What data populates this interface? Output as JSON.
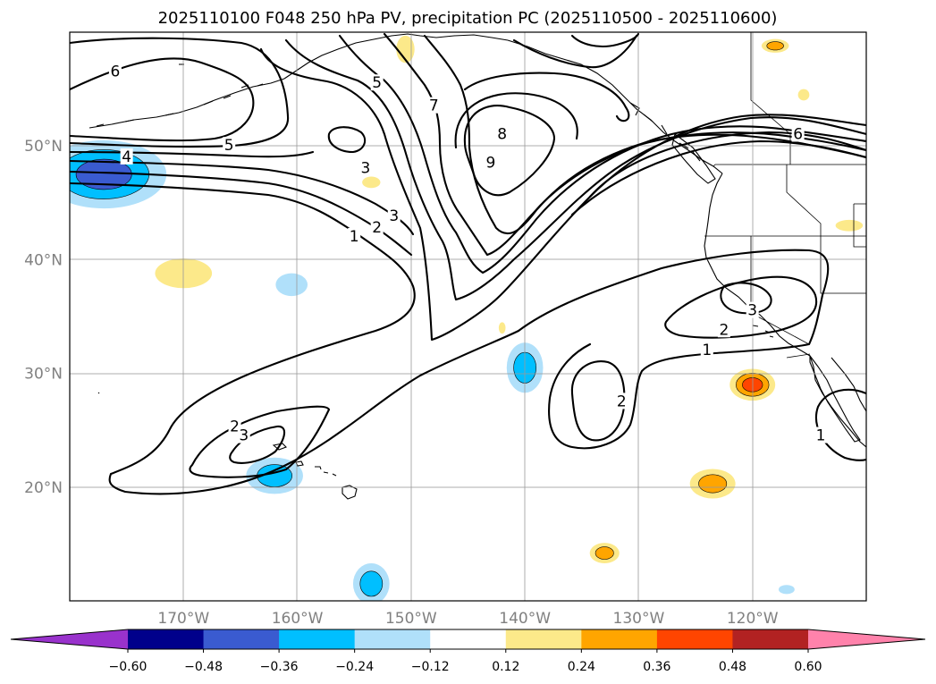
{
  "chart_data": {
    "type": "contour-map",
    "title": "2025110100 F048 250 hPa PV, precipitation PC (2025110500 - 2025110600)",
    "region": {
      "lon_range": [
        -180,
        -110
      ],
      "lat_range": [
        10,
        60
      ]
    },
    "gridlines": true,
    "x_ticks": [
      {
        "lon": -170,
        "label": "170°W"
      },
      {
        "lon": -160,
        "label": "160°W"
      },
      {
        "lon": -150,
        "label": "150°W"
      },
      {
        "lon": -140,
        "label": "140°W"
      },
      {
        "lon": -130,
        "label": "130°W"
      },
      {
        "lon": -120,
        "label": "120°W"
      }
    ],
    "y_ticks": [
      {
        "lat": 50,
        "label": "50°N"
      },
      {
        "lat": 40,
        "label": "40°N"
      },
      {
        "lat": 30,
        "label": "30°N"
      },
      {
        "lat": 20,
        "label": "20°N"
      }
    ],
    "pv_contour_levels": [
      1,
      2,
      3,
      4,
      5,
      6,
      7,
      8,
      9
    ],
    "contour_labels": [
      {
        "text": "6",
        "lon": -176,
        "lat": 56.5
      },
      {
        "text": "5",
        "lon": -166,
        "lat": 50.0
      },
      {
        "text": "4",
        "lon": -175,
        "lat": 49.0
      },
      {
        "text": "5",
        "lon": -153,
        "lat": 55.5
      },
      {
        "text": "7",
        "lon": -148,
        "lat": 53.5
      },
      {
        "text": "8",
        "lon": -142,
        "lat": 51.0
      },
      {
        "text": "9",
        "lon": -143,
        "lat": 48.5
      },
      {
        "text": "3",
        "lon": -154,
        "lat": 48.0
      },
      {
        "text": "3",
        "lon": -151.5,
        "lat": 43.8
      },
      {
        "text": "2",
        "lon": -153,
        "lat": 42.8
      },
      {
        "text": "1",
        "lon": -155,
        "lat": 42.0
      },
      {
        "text": "6",
        "lon": -116,
        "lat": 51.0
      },
      {
        "text": "3",
        "lon": -120,
        "lat": 35.5
      },
      {
        "text": "2",
        "lon": -122.5,
        "lat": 33.8
      },
      {
        "text": "1",
        "lon": -124,
        "lat": 32.0
      },
      {
        "text": "2",
        "lon": -131.5,
        "lat": 27.5
      },
      {
        "text": "2",
        "lon": -165.5,
        "lat": 25.3
      },
      {
        "text": "3",
        "lon": -164.7,
        "lat": 24.5
      },
      {
        "text": "1",
        "lon": -114,
        "lat": 24.5
      }
    ],
    "colorbar": {
      "orientation": "horizontal",
      "extend": "both",
      "boundaries": [
        -0.6,
        -0.48,
        -0.36,
        -0.24,
        -0.12,
        0.12,
        0.24,
        0.36,
        0.48,
        0.6
      ],
      "tick_labels": [
        "−0.60",
        "−0.48",
        "−0.36",
        "−0.24",
        "−0.12",
        "0.12",
        "0.24",
        "0.36",
        "0.48",
        "0.60"
      ],
      "colors": [
        "#9932cc",
        "#00008b",
        "#3a5bd0",
        "#00bfff",
        "#b0e0fa",
        "#ffffff",
        "#fce98a",
        "#ffa500",
        "#ff4500",
        "#b22222",
        "#ff82ab"
      ]
    },
    "precip_anomaly_blobs": [
      {
        "lon": -177,
        "lat": 47.5,
        "rx": 5.5,
        "ry": 3.0,
        "value": -0.4
      },
      {
        "lon": -162,
        "lat": 21.0,
        "rx": 2.5,
        "ry": 1.6,
        "value": -0.28
      },
      {
        "lon": -140,
        "lat": 30.5,
        "rx": 1.6,
        "ry": 2.2,
        "value": -0.3
      },
      {
        "lon": -153.5,
        "lat": 11.5,
        "rx": 1.6,
        "ry": 1.8,
        "value": -0.26
      },
      {
        "lon": -160.5,
        "lat": 37.8,
        "rx": 1.4,
        "ry": 1.0,
        "value": -0.24
      },
      {
        "lon": -170,
        "lat": 38.8,
        "rx": 2.5,
        "ry": 1.3,
        "value": 0.2
      },
      {
        "lon": -120,
        "lat": 29.0,
        "rx": 2.0,
        "ry": 1.4,
        "value": 0.42
      },
      {
        "lon": -123.5,
        "lat": 20.3,
        "rx": 2.0,
        "ry": 1.3,
        "value": 0.28
      },
      {
        "lon": -133,
        "lat": 14.2,
        "rx": 1.3,
        "ry": 0.9,
        "value": 0.26
      },
      {
        "lon": -118,
        "lat": 58.8,
        "rx": 1.2,
        "ry": 0.6,
        "value": 0.26
      },
      {
        "lon": -150.5,
        "lat": 58.5,
        "rx": 0.8,
        "ry": 1.2,
        "value": 0.2
      },
      {
        "lon": -153.5,
        "lat": 46.8,
        "rx": 0.8,
        "ry": 0.5,
        "value": 0.18
      },
      {
        "lon": -111.5,
        "lat": 43.0,
        "rx": 1.2,
        "ry": 0.5,
        "value": 0.2
      },
      {
        "lon": -115.5,
        "lat": 54.5,
        "rx": 0.5,
        "ry": 0.5,
        "value": 0.15
      },
      {
        "lon": -117,
        "lat": 11.0,
        "rx": 0.7,
        "ry": 0.4,
        "value": -0.2
      },
      {
        "lon": -142,
        "lat": 34.0,
        "rx": 0.3,
        "ry": 0.5,
        "value": 0.14
      }
    ]
  }
}
